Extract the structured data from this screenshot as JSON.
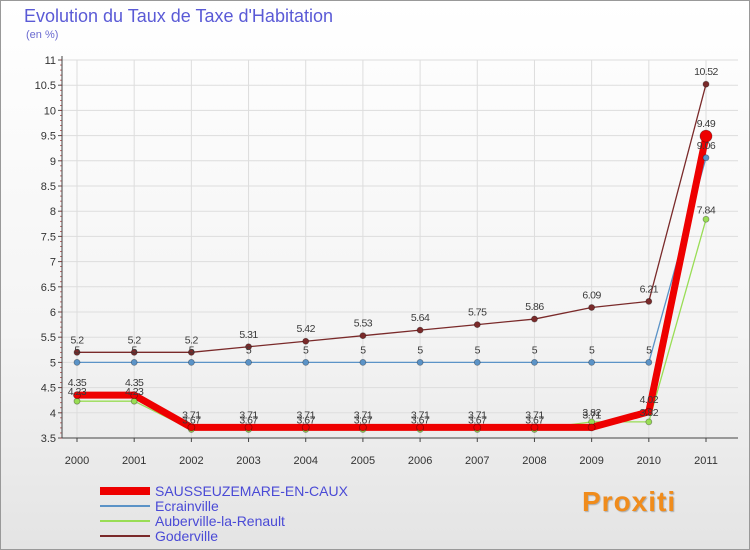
{
  "chart_data": {
    "type": "line",
    "title": "Evolution du Taux de Taxe d'Habitation",
    "unit_label": "(en %)",
    "xlabel": "",
    "ylabel": "",
    "ylim": [
      3.5,
      11
    ],
    "y_ticks": [
      "3.5",
      "4",
      "4.5",
      "5",
      "5.5",
      "6",
      "6.5",
      "7",
      "7.5",
      "8",
      "8.5",
      "9",
      "9.5",
      "10",
      "10.5",
      "11"
    ],
    "categories": [
      "2000",
      "2001",
      "2002",
      "2003",
      "2004",
      "2005",
      "2006",
      "2007",
      "2008",
      "2009",
      "2010",
      "2011"
    ],
    "series": [
      {
        "name": "SAUSSEUZEMARE-EN-CAUX",
        "color": "#ee0000",
        "values": [
          4.35,
          4.35,
          3.71,
          3.71,
          3.71,
          3.71,
          3.71,
          3.71,
          3.71,
          3.71,
          4.02,
          9.49
        ],
        "labels": [
          "4.35",
          "4.35",
          "3.71",
          "3.71",
          "3.71",
          "3.71",
          "3.71",
          "3.71",
          "3.71",
          "3.71",
          "4.02",
          "9.49"
        ]
      },
      {
        "name": "Ecrainville",
        "color": "#5b93c7",
        "values": [
          5,
          5,
          5,
          5,
          5,
          5,
          5,
          5,
          5,
          5,
          5,
          9.06
        ],
        "labels": [
          "5",
          "5",
          "5",
          "5",
          "5",
          "5",
          "5",
          "5",
          "5",
          "5",
          "5",
          "9.06"
        ]
      },
      {
        "name": "Auberville-la-Renault",
        "color": "#99dd55",
        "values": [
          4.23,
          4.23,
          3.67,
          3.67,
          3.67,
          3.67,
          3.67,
          3.67,
          3.67,
          3.82,
          3.82,
          7.84
        ],
        "labels": [
          "4.23",
          "4.23",
          "3.67",
          "3.67",
          "3.67",
          "3.67",
          "3.67",
          "3.67",
          "3.67",
          "3.82",
          "3.82",
          "7.84"
        ]
      },
      {
        "name": "Goderville",
        "color": "#7a2a2a",
        "values": [
          5.2,
          5.2,
          5.2,
          5.31,
          5.42,
          5.53,
          5.64,
          5.75,
          5.86,
          6.09,
          6.21,
          10.52
        ],
        "labels": [
          "5.2",
          "5.2",
          "5.2",
          "5.31",
          "5.42",
          "5.53",
          "5.64",
          "5.75",
          "5.86",
          "6.09",
          "6.21",
          "10.52"
        ]
      }
    ],
    "legend_position": "bottom-left"
  },
  "logo": {
    "text": "Proxiti"
  }
}
